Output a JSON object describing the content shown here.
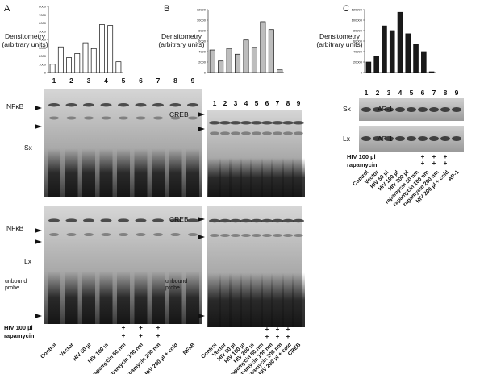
{
  "chart_data": [
    {
      "type": "bar",
      "title": "A",
      "ylabel": "Densitometry (arbitrary units)",
      "categories": [
        null,
        null,
        null,
        null,
        null,
        null,
        null,
        null,
        null
      ],
      "values": [
        1000,
        3100,
        1800,
        2300,
        3600,
        2900,
        5800,
        5700,
        1300
      ],
      "color": "#ffffff",
      "ylim": [
        0,
        8000
      ],
      "yticks": [
        0,
        1000,
        2000,
        3000,
        4000,
        5000,
        6000,
        7000,
        8000
      ]
    },
    {
      "type": "bar",
      "title": "B",
      "ylabel": "Densitometry (arbitrary units)",
      "categories": [
        null,
        null,
        null,
        null,
        null,
        null,
        null,
        null,
        null
      ],
      "values": [
        4300,
        2200,
        4600,
        3500,
        6200,
        4800,
        9700,
        8200,
        600
      ],
      "color": "#bdbdbd",
      "ylim": [
        0,
        12000
      ],
      "yticks": [
        0,
        2000,
        4000,
        6000,
        8000,
        10000,
        12000
      ]
    },
    {
      "type": "bar",
      "title": "C",
      "ylabel": "Densitometry (arbitrary units)",
      "categories": [
        null,
        null,
        null,
        null,
        null,
        null,
        null,
        null,
        null
      ],
      "values": [
        20000,
        31000,
        89000,
        80000,
        115000,
        74000,
        54000,
        40000,
        1500
      ],
      "color": "#1a1a1a",
      "ylim": [
        0,
        120000
      ],
      "yticks": [
        0,
        20000,
        40000,
        60000,
        80000,
        100000,
        120000
      ]
    }
  ],
  "gels": [
    {
      "lanes": [
        "1",
        "2",
        "3",
        "4",
        "5",
        "6",
        "7",
        "8",
        "9"
      ],
      "top_labels": [
        "NFκB",
        "Sx"
      ],
      "bottom_labels": [
        "NFκB",
        "Lx",
        "unbound probe"
      ],
      "treatments": [
        "HIV 100 µl",
        "rapamycin"
      ],
      "plus_rows": [
        [
          null,
          null,
          null,
          null,
          "+",
          "+",
          "+",
          null,
          null
        ],
        [
          null,
          null,
          null,
          null,
          "+",
          "+",
          "+",
          null,
          null
        ]
      ],
      "conditions": [
        "Control",
        "Vector",
        "HIV 50 µl",
        "HIV 100 µl",
        "rapamycin 50 nm",
        "rapamycin 100 nm",
        "rapamycin 200 nm",
        "HIV 200 µl + cold",
        "NFκB"
      ]
    },
    {
      "lanes": [
        "1",
        "2",
        "3",
        "4",
        "5",
        "6",
        "7",
        "8",
        "9"
      ],
      "top_labels": [
        "CREB"
      ],
      "bottom_labels": [
        "CREB",
        "unbound probe"
      ],
      "plus_rows": [
        [
          null,
          null,
          null,
          null,
          null,
          "+",
          "+",
          "+",
          null
        ],
        [
          null,
          null,
          null,
          null,
          null,
          "+",
          "+",
          "+",
          null
        ]
      ],
      "conditions": [
        "Control",
        "Vector",
        "HIV 50 µl",
        "HIV 100 µl",
        "HIV 200 µl",
        "rapamycin 50 nm",
        "rapamycin 100 nm",
        "rapamycin 200 nm",
        "HIV 200 µl + cold",
        "CREB"
      ]
    },
    {
      "lanes": [
        "1",
        "2",
        "3",
        "4",
        "5",
        "6",
        "7",
        "8",
        "9"
      ],
      "top_labels": [
        "Sx",
        "AP-1"
      ],
      "bottom_labels": [
        "Lx",
        "AP-1"
      ],
      "treatments": [
        "HIV 100 µl",
        "rapamycin"
      ],
      "plus_rows": [
        [
          null,
          null,
          null,
          null,
          null,
          "+",
          "+",
          "+",
          null
        ],
        [
          null,
          null,
          null,
          null,
          null,
          "+",
          "+",
          "+",
          null
        ]
      ],
      "conditions": [
        "Control",
        "Vector",
        "HIV 50 µl",
        "HIV 100 µl",
        "HIV 200 µl",
        "rapamycin 50 nm",
        "rapamycin 100 nm",
        "rapamycin 200 nm",
        "HIV 200 µl + cold",
        "AP-1"
      ]
    }
  ]
}
